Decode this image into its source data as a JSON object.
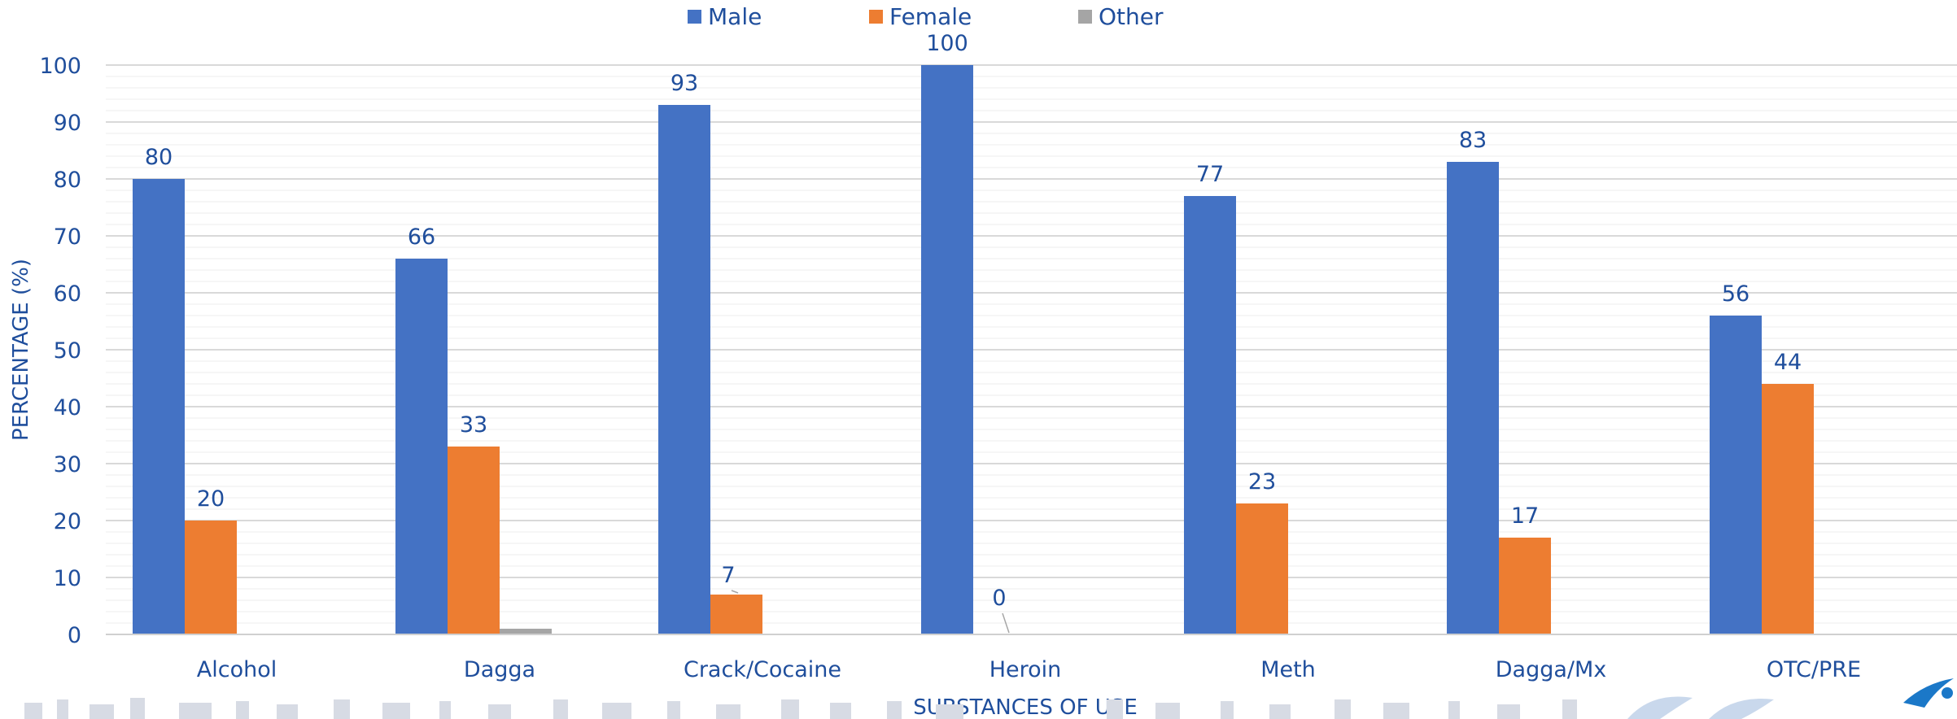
{
  "chart_data": {
    "type": "bar",
    "categories": [
      "Alcohol",
      "Dagga",
      "Crack/Cocaine",
      "Heroin",
      "Meth",
      "Dagga/Mx",
      "OTC/PRE"
    ],
    "series": [
      {
        "name": "Male",
        "color": "#4472c4",
        "values": [
          80,
          66,
          93,
          100,
          77,
          83,
          56
        ],
        "labels": [
          "80",
          "66",
          "93",
          "100",
          "77",
          "83",
          "56"
        ]
      },
      {
        "name": "Female",
        "color": "#ed7d31",
        "values": [
          20,
          33,
          7,
          0,
          23,
          17,
          44
        ],
        "labels": [
          "20",
          "33",
          "7",
          "0",
          "23",
          "17",
          "44"
        ]
      },
      {
        "name": "Other",
        "color": "#a5a5a5",
        "values": [
          0,
          1,
          0,
          0,
          0,
          0,
          0
        ],
        "labels": []
      }
    ],
    "xlabel": "SUBSTANCES OF USE",
    "ylabel": "PERCENTAGE (%)",
    "ylim": [
      0,
      100
    ],
    "yticks": [
      "0",
      "10",
      "20",
      "30",
      "40",
      "50",
      "60",
      "70",
      "80",
      "90",
      "100"
    ],
    "grid": true,
    "legend_position": "top-center"
  },
  "colors": {
    "axis_text": "#1f4e9c",
    "gridline_major": "#d9d9d9",
    "gridline_minor": "#ededed"
  }
}
